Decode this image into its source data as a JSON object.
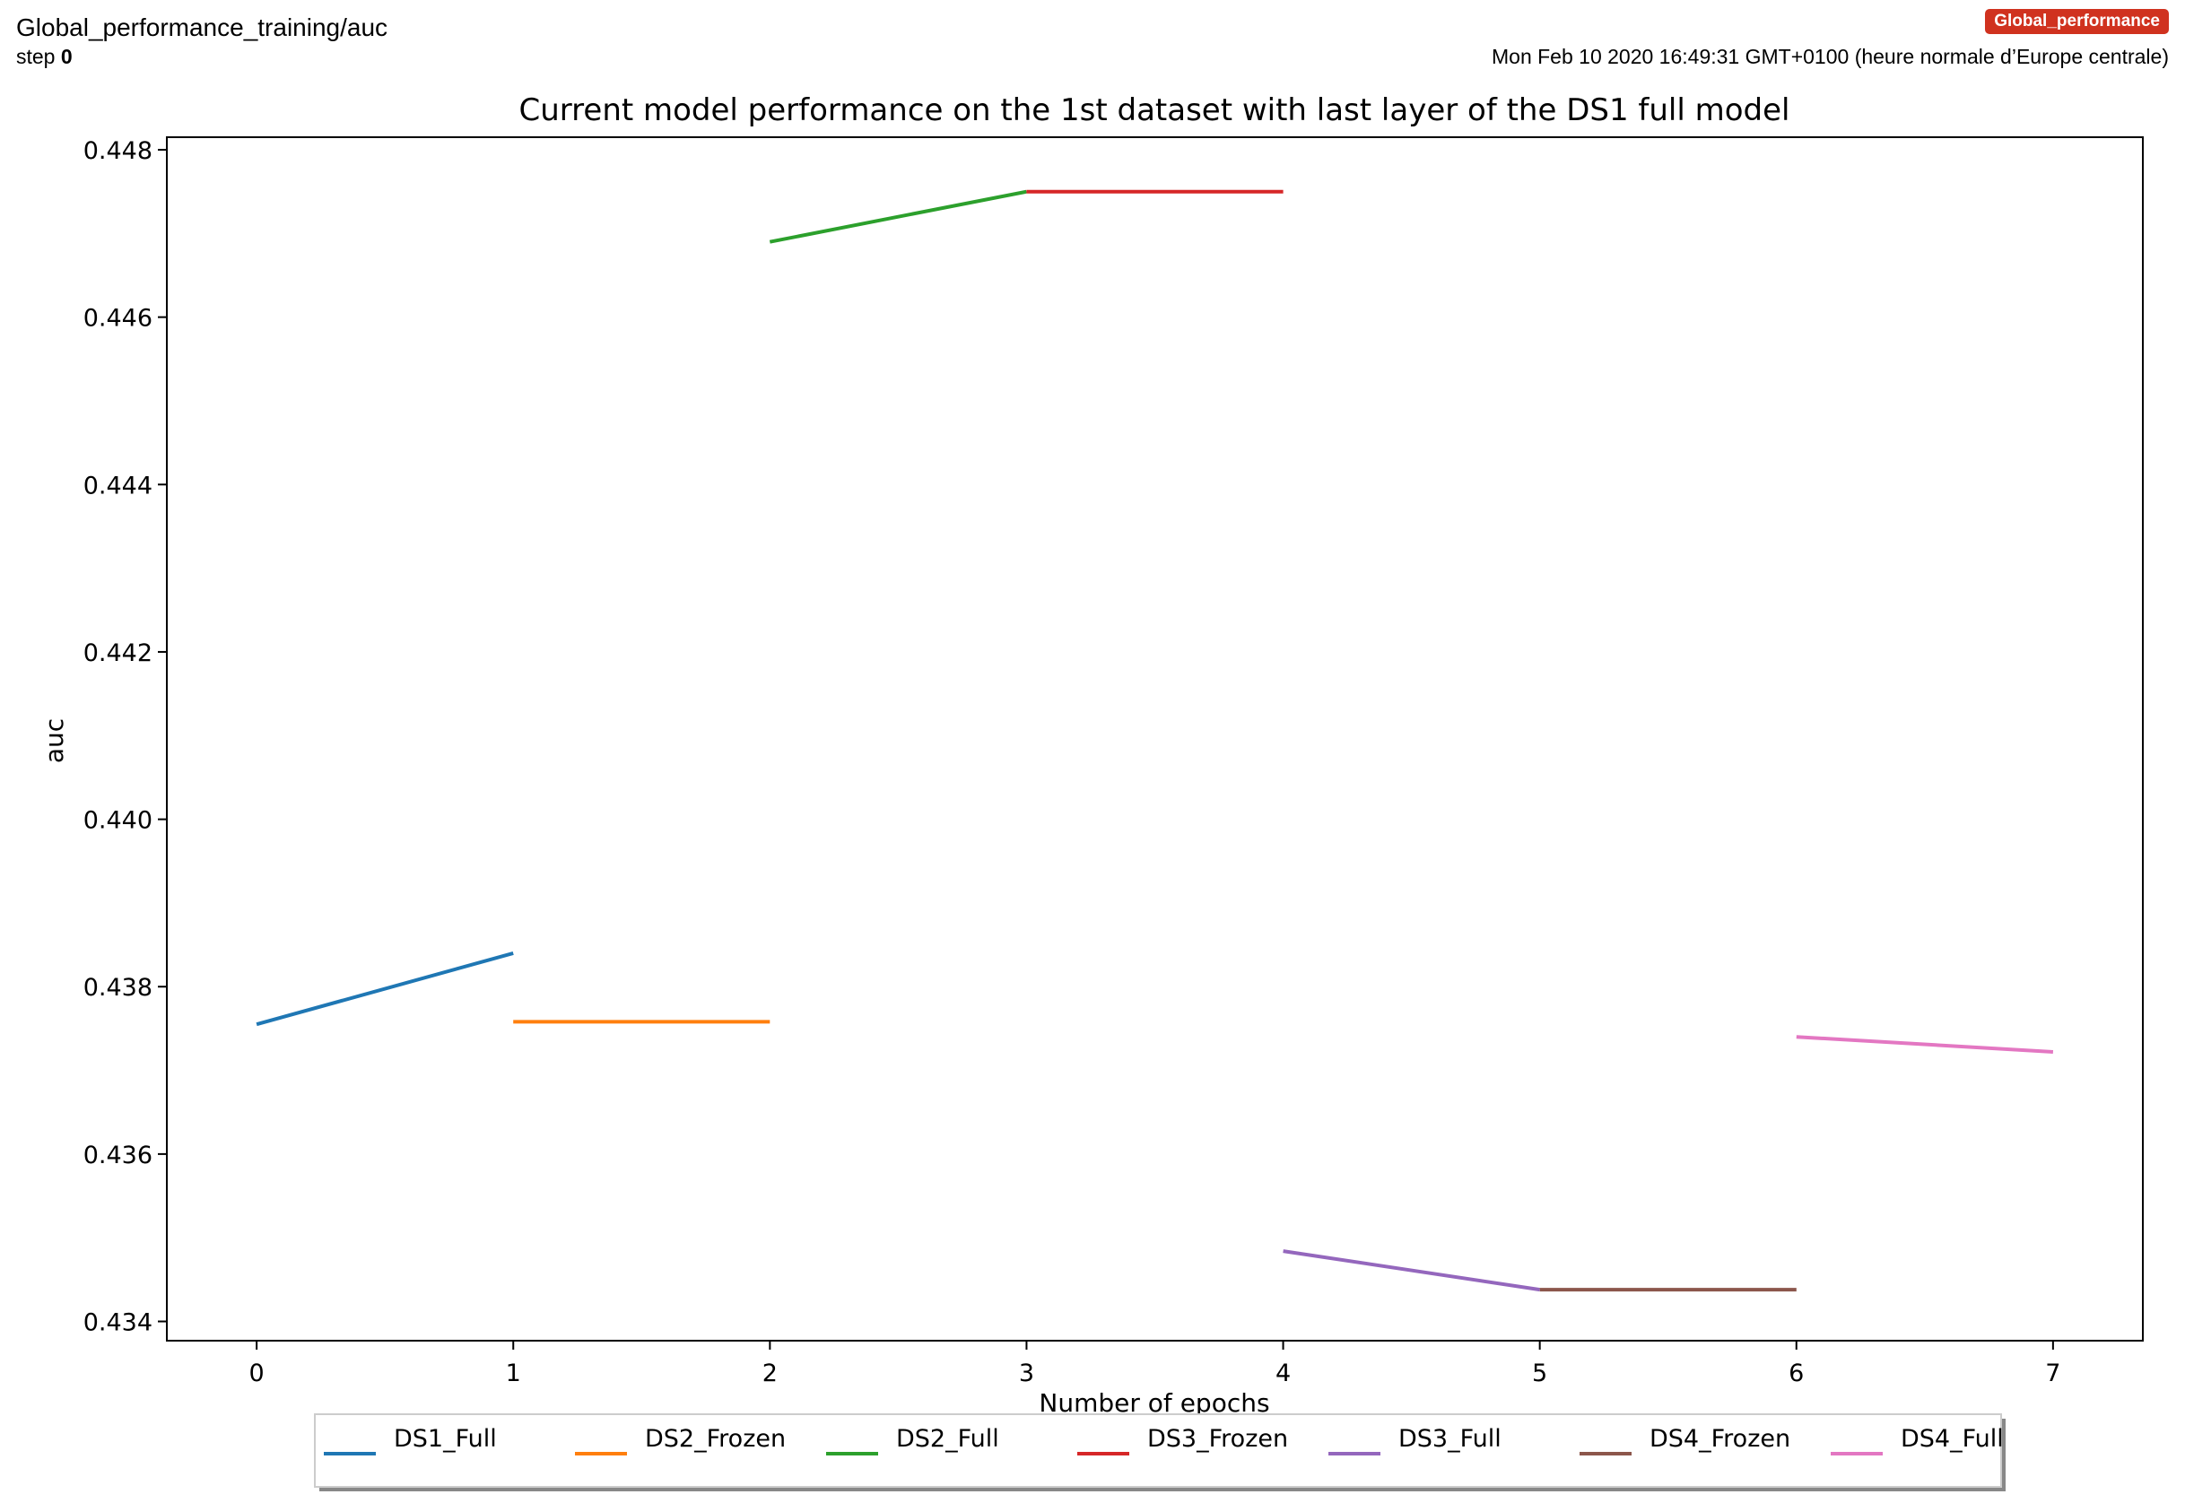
{
  "header": {
    "title": "Global_performance_training/auc",
    "step_label": "step",
    "step_value": "0",
    "badge": "Global_performance",
    "timestamp": "Mon Feb 10 2020 16:49:31 GMT+0100 (heure normale d’Europe centrale)"
  },
  "chart_data": {
    "type": "line",
    "title": "Current model performance on the 1st dataset with last layer of the DS1 full model",
    "xlabel": "Number of epochs",
    "ylabel": "auc",
    "xlim": [
      -0.35,
      7.35
    ],
    "ylim": [
      0.43377,
      0.44815
    ],
    "xticks": [
      "0",
      "1",
      "2",
      "3",
      "4",
      "5",
      "6",
      "7"
    ],
    "yticks": [
      "0.434",
      "0.436",
      "0.438",
      "0.440",
      "0.442",
      "0.444",
      "0.446",
      "0.448"
    ],
    "grid": false,
    "legend_position": "bottom-center",
    "series": [
      {
        "name": "DS1_Full",
        "color": "#1f77b4",
        "x": [
          0,
          1
        ],
        "y": [
          0.43755,
          0.4384
        ]
      },
      {
        "name": "DS2_Frozen",
        "color": "#ff7f0e",
        "x": [
          1,
          2
        ],
        "y": [
          0.43758,
          0.43758
        ]
      },
      {
        "name": "DS2_Full",
        "color": "#2ca02c",
        "x": [
          2,
          3
        ],
        "y": [
          0.4469,
          0.4475
        ]
      },
      {
        "name": "DS3_Frozen",
        "color": "#d62728",
        "x": [
          3,
          4
        ],
        "y": [
          0.4475,
          0.4475
        ]
      },
      {
        "name": "DS3_Full",
        "color": "#9467bd",
        "x": [
          4,
          5
        ],
        "y": [
          0.43484,
          0.43438
        ]
      },
      {
        "name": "DS4_Frozen",
        "color": "#8c564b",
        "x": [
          5,
          6
        ],
        "y": [
          0.43438,
          0.43438
        ]
      },
      {
        "name": "DS4_Full",
        "color": "#e377c2",
        "x": [
          6,
          7
        ],
        "y": [
          0.4374,
          0.43722
        ]
      }
    ]
  }
}
